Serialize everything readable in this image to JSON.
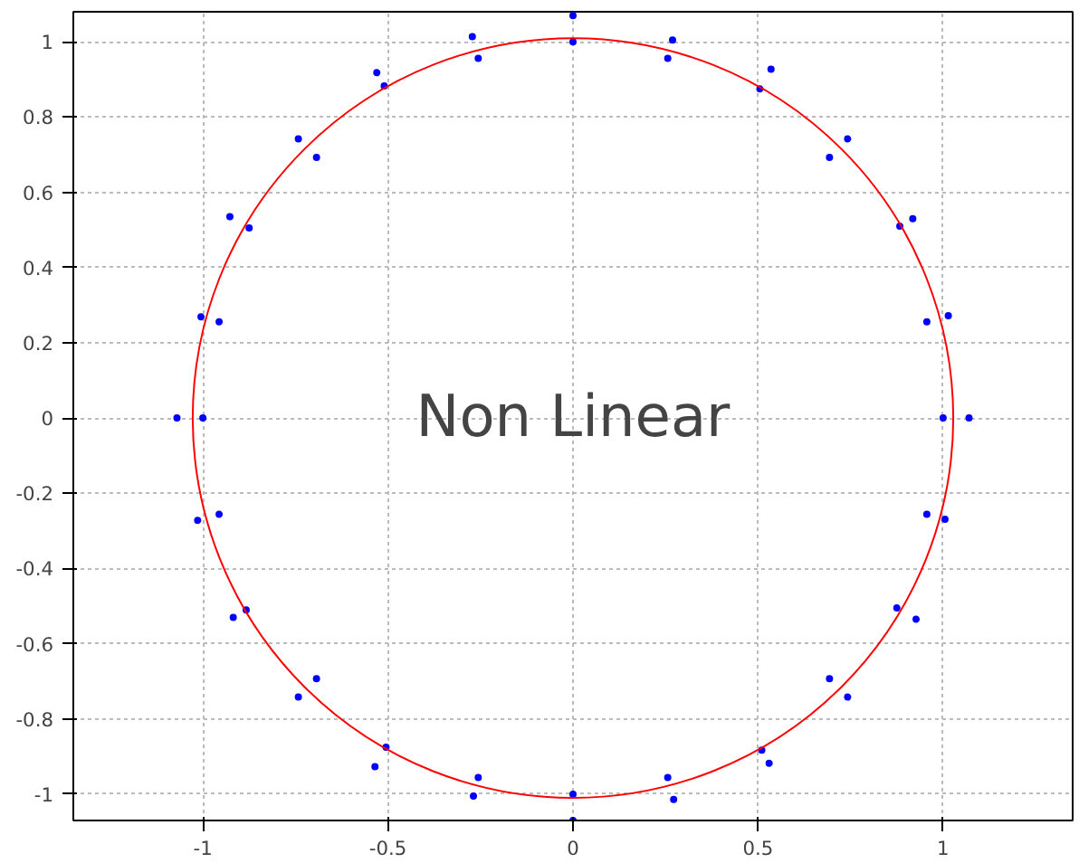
{
  "chart_data": {
    "type": "scatter",
    "xlim": [
      -1.35,
      1.35
    ],
    "ylim": [
      -1.07,
      1.08
    ],
    "xticks": [
      -1,
      -0.5,
      0,
      0.5,
      1
    ],
    "yticks": [
      -1,
      -0.8,
      -0.6,
      -0.4,
      -0.2,
      0,
      0.2,
      0.4,
      0.6,
      0.8,
      1
    ],
    "grid": true,
    "annotations": [
      "Non Linear"
    ],
    "series": [
      {
        "marker": "circle",
        "color": "#0000ff",
        "x": [
          1.0,
          1.07,
          0.956,
          1.014,
          0.883,
          0.918,
          0.693,
          0.742,
          0.505,
          0.535,
          0.256,
          0.269,
          0,
          0,
          -0.256,
          -0.272,
          -0.51,
          -0.53,
          -0.693,
          -0.742,
          -0.875,
          -0.927,
          -0.956,
          -1.005,
          -1.0,
          -1.07,
          -0.956,
          -1.014,
          -0.883,
          -0.918,
          -0.693,
          -0.742,
          -0.505,
          -0.535,
          -0.256,
          -0.269,
          0,
          0,
          0.256,
          0.272,
          0.51,
          0.53,
          0.693,
          0.742,
          0.875,
          0.927,
          0.956,
          1.005
        ],
        "values": [
          0,
          0,
          0.256,
          0.272,
          0.51,
          0.53,
          0.693,
          0.742,
          0.875,
          0.927,
          0.956,
          1.005,
          1.0,
          1.07,
          0.956,
          1.014,
          0.883,
          0.918,
          0.693,
          0.742,
          0.505,
          0.535,
          0.256,
          0.269,
          0,
          0,
          -0.256,
          -0.272,
          -0.51,
          -0.53,
          -0.693,
          -0.742,
          -0.875,
          -0.927,
          -0.956,
          -1.005,
          -1.0,
          -1.07,
          -0.956,
          -1.014,
          -0.883,
          -0.918,
          -0.693,
          -0.742,
          -0.505,
          -0.535,
          -0.256,
          -0.269
        ]
      }
    ]
  }
}
